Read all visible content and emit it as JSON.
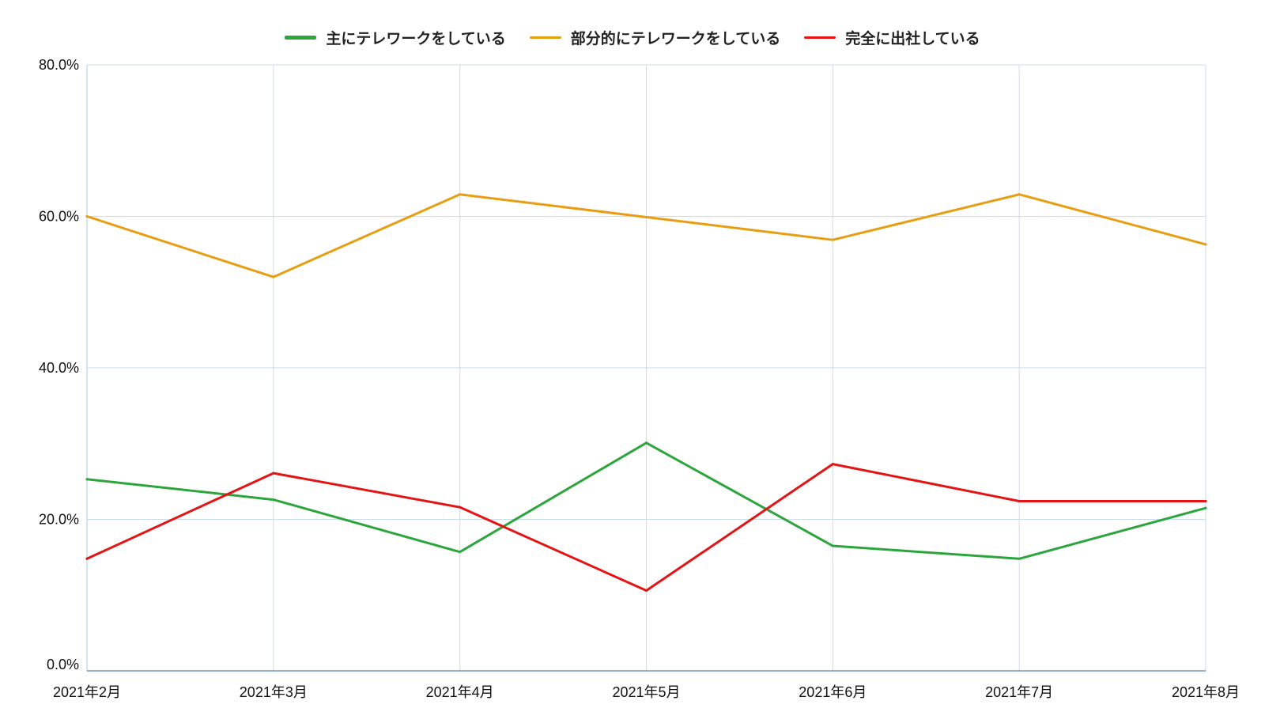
{
  "chart_data": {
    "type": "line",
    "categories": [
      "2021年2月",
      "2021年3月",
      "2021年4月",
      "2021年5月",
      "2021年6月",
      "2021年7月",
      "2021年8月"
    ],
    "series": [
      {
        "name": "主にテレワークをしている",
        "color": "#2ca63c",
        "values": [
          25.3,
          22.6,
          15.7,
          30.1,
          16.5,
          14.8,
          21.5
        ]
      },
      {
        "name": "部分的にテレワークをしている",
        "color": "#e79e12",
        "values": [
          60.0,
          52.0,
          62.9,
          59.9,
          56.9,
          62.9,
          56.3
        ]
      },
      {
        "name": "完全に出社している",
        "color": "#e41414",
        "values": [
          14.8,
          26.1,
          21.6,
          10.6,
          27.3,
          22.4,
          22.4
        ]
      }
    ],
    "y_ticks": [
      "0.0%",
      "20.0%",
      "40.0%",
      "60.0%",
      "80.0%"
    ],
    "ylim": [
      0,
      80
    ],
    "grid": true,
    "legend_position": "top-center",
    "title": "",
    "xlabel": "",
    "ylabel": ""
  }
}
